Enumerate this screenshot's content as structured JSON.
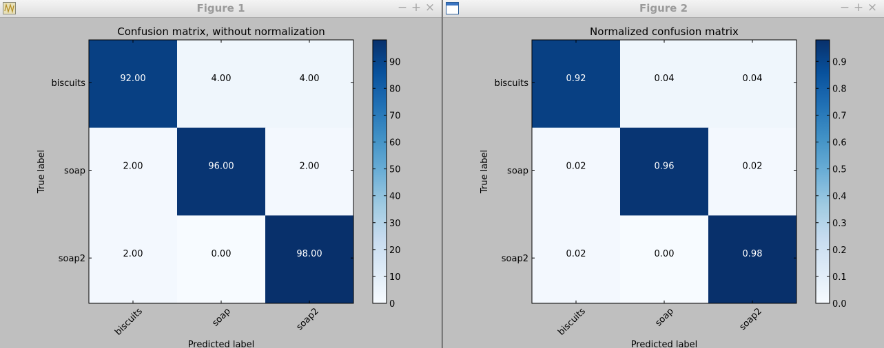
{
  "windows": [
    {
      "title": "Figure 1",
      "icon": "matplotlib-wave-icon",
      "controls": {
        "minimize": "−",
        "maximize": "+",
        "close": "×"
      },
      "chart_data": {
        "type": "heatmap",
        "title": "Confusion matrix, without normalization",
        "xlabel": "Predicted label",
        "ylabel": "True label",
        "categories_x": [
          "biscuits",
          "soap",
          "soap2"
        ],
        "categories_y": [
          "biscuits",
          "soap",
          "soap2"
        ],
        "values": [
          [
            92,
            4,
            4
          ],
          [
            2,
            96,
            2
          ],
          [
            2,
            0,
            98
          ]
        ],
        "cell_labels": [
          [
            "92.00",
            "4.00",
            "4.00"
          ],
          [
            "2.00",
            "96.00",
            "2.00"
          ],
          [
            "2.00",
            "0.00",
            "98.00"
          ]
        ],
        "colormap": "Blues",
        "colorbar": {
          "min": 0,
          "max": 98,
          "ticks": [
            "0",
            "10",
            "20",
            "30",
            "40",
            "50",
            "60",
            "70",
            "80",
            "90"
          ]
        }
      }
    },
    {
      "title": "Figure 2",
      "icon": "window-icon",
      "controls": {
        "minimize": "−",
        "maximize": "+",
        "close": "×"
      },
      "chart_data": {
        "type": "heatmap",
        "title": "Normalized confusion matrix",
        "xlabel": "Predicted label",
        "ylabel": "True label",
        "categories_x": [
          "biscuits",
          "soap",
          "soap2"
        ],
        "categories_y": [
          "biscuits",
          "soap",
          "soap2"
        ],
        "values": [
          [
            0.92,
            0.04,
            0.04
          ],
          [
            0.02,
            0.96,
            0.02
          ],
          [
            0.02,
            0.0,
            0.98
          ]
        ],
        "cell_labels": [
          [
            "0.92",
            "0.04",
            "0.04"
          ],
          [
            "0.02",
            "0.96",
            "0.02"
          ],
          [
            "0.02",
            "0.00",
            "0.98"
          ]
        ],
        "colormap": "Blues",
        "colorbar": {
          "min": 0,
          "max": 0.98,
          "ticks": [
            "0.0",
            "0.1",
            "0.2",
            "0.3",
            "0.4",
            "0.5",
            "0.6",
            "0.7",
            "0.8",
            "0.9"
          ]
        }
      }
    }
  ]
}
